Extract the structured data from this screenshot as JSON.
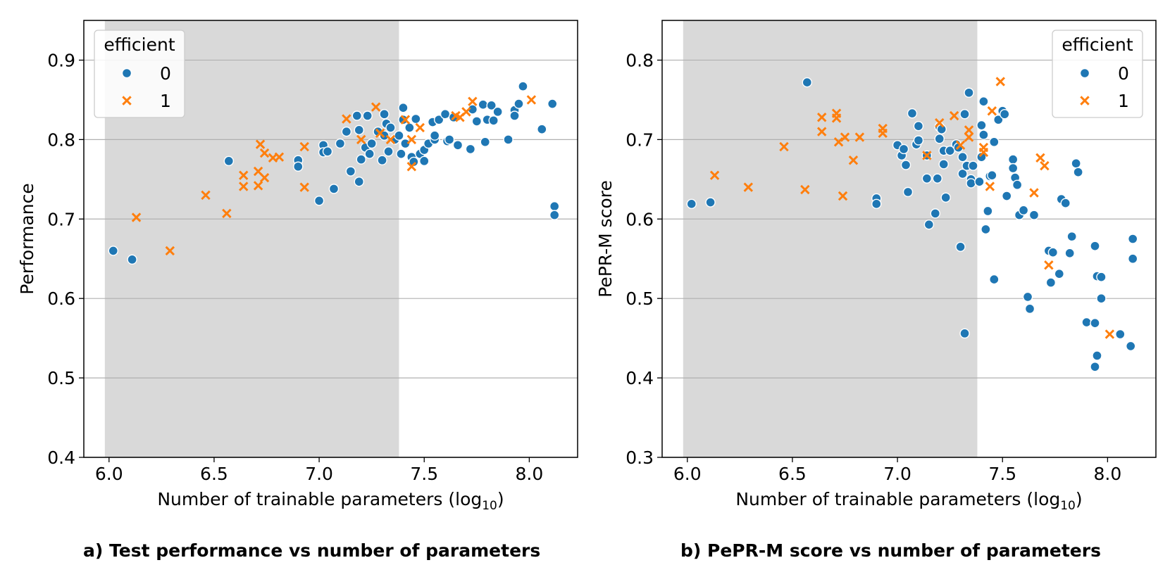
{
  "colors": {
    "class0": "#1f77b4",
    "class1": "#ff7f0e",
    "shade": "#d9d9d9",
    "grid": "#b0b0b0"
  },
  "captions": {
    "a": "a) Test performance vs number of parameters",
    "b": "b) PePR-M score vs number of parameters"
  },
  "chart_data": [
    {
      "type": "scatter",
      "title": "",
      "xlabel": "Number of trainable parameters (log10)",
      "xlabel_base": "Number of trainable parameters (log",
      "xlabel_sub": "10",
      "xlabel_close": ")",
      "ylabel": "Performance",
      "xlim": [
        5.88,
        8.23
      ],
      "ylim": [
        0.4,
        0.95
      ],
      "xticks": [
        "6.0",
        "6.5",
        "7.0",
        "7.5",
        "8.0"
      ],
      "yticks": [
        "0.4",
        "0.5",
        "0.6",
        "0.7",
        "0.8",
        "0.9"
      ],
      "grid": "horizontal",
      "shaded_x_range": [
        5.98,
        7.38
      ],
      "legend": {
        "title": "efficient",
        "labels": [
          "0",
          "1"
        ],
        "placement": "top-left"
      },
      "series": [
        {
          "name": "0",
          "marker": "circle",
          "points": [
            [
              6.02,
              0.66
            ],
            [
              6.11,
              0.649
            ],
            [
              6.57,
              0.773
            ],
            [
              6.9,
              0.774
            ],
            [
              6.9,
              0.766
            ],
            [
              7.0,
              0.723
            ],
            [
              7.02,
              0.793
            ],
            [
              7.02,
              0.784
            ],
            [
              7.04,
              0.785
            ],
            [
              7.07,
              0.738
            ],
            [
              7.1,
              0.795
            ],
            [
              7.13,
              0.81
            ],
            [
              7.15,
              0.76
            ],
            [
              7.18,
              0.83
            ],
            [
              7.19,
              0.747
            ],
            [
              7.19,
              0.812
            ],
            [
              7.2,
              0.775
            ],
            [
              7.22,
              0.79
            ],
            [
              7.23,
              0.83
            ],
            [
              7.24,
              0.782
            ],
            [
              7.25,
              0.795
            ],
            [
              7.28,
              0.81
            ],
            [
              7.3,
              0.774
            ],
            [
              7.31,
              0.832
            ],
            [
              7.31,
              0.805
            ],
            [
              7.32,
              0.82
            ],
            [
              7.33,
              0.785
            ],
            [
              7.34,
              0.815
            ],
            [
              7.36,
              0.8
            ],
            [
              7.38,
              0.805
            ],
            [
              7.39,
              0.782
            ],
            [
              7.4,
              0.84
            ],
            [
              7.4,
              0.825
            ],
            [
              7.41,
              0.795
            ],
            [
              7.43,
              0.815
            ],
            [
              7.44,
              0.778
            ],
            [
              7.45,
              0.772
            ],
            [
              7.46,
              0.826
            ],
            [
              7.48,
              0.782
            ],
            [
              7.5,
              0.773
            ],
            [
              7.5,
              0.787
            ],
            [
              7.52,
              0.795
            ],
            [
              7.54,
              0.822
            ],
            [
              7.55,
              0.8
            ],
            [
              7.55,
              0.805
            ],
            [
              7.57,
              0.825
            ],
            [
              7.6,
              0.832
            ],
            [
              7.61,
              0.798
            ],
            [
              7.62,
              0.8
            ],
            [
              7.64,
              0.828
            ],
            [
              7.66,
              0.793
            ],
            [
              7.72,
              0.788
            ],
            [
              7.73,
              0.838
            ],
            [
              7.75,
              0.823
            ],
            [
              7.78,
              0.844
            ],
            [
              7.79,
              0.797
            ],
            [
              7.8,
              0.825
            ],
            [
              7.82,
              0.843
            ],
            [
              7.83,
              0.824
            ],
            [
              7.85,
              0.835
            ],
            [
              7.9,
              0.8
            ],
            [
              7.93,
              0.837
            ],
            [
              7.93,
              0.83
            ],
            [
              7.95,
              0.845
            ],
            [
              7.97,
              0.867
            ],
            [
              8.06,
              0.813
            ],
            [
              8.11,
              0.845
            ],
            [
              8.12,
              0.716
            ],
            [
              8.12,
              0.705
            ]
          ]
        },
        {
          "name": "1",
          "marker": "x",
          "points": [
            [
              6.13,
              0.702
            ],
            [
              6.29,
              0.66
            ],
            [
              6.46,
              0.73
            ],
            [
              6.56,
              0.707
            ],
            [
              6.64,
              0.755
            ],
            [
              6.64,
              0.741
            ],
            [
              6.71,
              0.742
            ],
            [
              6.71,
              0.76
            ],
            [
              6.72,
              0.794
            ],
            [
              6.74,
              0.752
            ],
            [
              6.74,
              0.783
            ],
            [
              6.78,
              0.777
            ],
            [
              6.81,
              0.778
            ],
            [
              6.93,
              0.791
            ],
            [
              6.93,
              0.74
            ],
            [
              7.13,
              0.826
            ],
            [
              7.2,
              0.8
            ],
            [
              7.27,
              0.841
            ],
            [
              7.29,
              0.808
            ],
            [
              7.34,
              0.8
            ],
            [
              7.41,
              0.825
            ],
            [
              7.44,
              0.8
            ],
            [
              7.44,
              0.766
            ],
            [
              7.48,
              0.815
            ],
            [
              7.65,
              0.83
            ],
            [
              7.67,
              0.828
            ],
            [
              7.7,
              0.835
            ],
            [
              7.73,
              0.848
            ],
            [
              8.01,
              0.85
            ]
          ]
        }
      ]
    },
    {
      "type": "scatter",
      "title": "",
      "xlabel": "Number of trainable parameters (log10)",
      "xlabel_base": "Number of trainable parameters (log",
      "xlabel_sub": "10",
      "xlabel_close": ")",
      "ylabel": "PePR-M score",
      "xlim": [
        5.88,
        8.23
      ],
      "ylim": [
        0.3,
        0.85
      ],
      "xticks": [
        "6.0",
        "6.5",
        "7.0",
        "7.5",
        "8.0"
      ],
      "yticks": [
        "0.3",
        "0.4",
        "0.5",
        "0.6",
        "0.7",
        "0.8"
      ],
      "grid": "horizontal",
      "shaded_x_range": [
        5.98,
        7.38
      ],
      "legend": {
        "title": "efficient",
        "labels": [
          "0",
          "1"
        ],
        "placement": "top-right"
      },
      "series": [
        {
          "name": "0",
          "marker": "circle",
          "points": [
            [
              6.02,
              0.619
            ],
            [
              6.11,
              0.621
            ],
            [
              6.57,
              0.772
            ],
            [
              6.9,
              0.626
            ],
            [
              6.9,
              0.619
            ],
            [
              7.0,
              0.693
            ],
            [
              7.02,
              0.68
            ],
            [
              7.03,
              0.688
            ],
            [
              7.04,
              0.668
            ],
            [
              7.05,
              0.634
            ],
            [
              7.07,
              0.733
            ],
            [
              7.09,
              0.694
            ],
            [
              7.1,
              0.717
            ],
            [
              7.1,
              0.699
            ],
            [
              7.14,
              0.651
            ],
            [
              7.14,
              0.68
            ],
            [
              7.15,
              0.593
            ],
            [
              7.18,
              0.607
            ],
            [
              7.19,
              0.651
            ],
            [
              7.2,
              0.701
            ],
            [
              7.2,
              0.716
            ],
            [
              7.21,
              0.713
            ],
            [
              7.22,
              0.669
            ],
            [
              7.22,
              0.686
            ],
            [
              7.23,
              0.627
            ],
            [
              7.25,
              0.686
            ],
            [
              7.28,
              0.694
            ],
            [
              7.29,
              0.69
            ],
            [
              7.3,
              0.565
            ],
            [
              7.31,
              0.678
            ],
            [
              7.31,
              0.657
            ],
            [
              7.32,
              0.732
            ],
            [
              7.32,
              0.456
            ],
            [
              7.33,
              0.667
            ],
            [
              7.34,
              0.759
            ],
            [
              7.35,
              0.65
            ],
            [
              7.35,
              0.645
            ],
            [
              7.36,
              0.667
            ],
            [
              7.39,
              0.647
            ],
            [
              7.4,
              0.678
            ],
            [
              7.4,
              0.718
            ],
            [
              7.41,
              0.748
            ],
            [
              7.41,
              0.706
            ],
            [
              7.42,
              0.587
            ],
            [
              7.43,
              0.61
            ],
            [
              7.44,
              0.654
            ],
            [
              7.45,
              0.655
            ],
            [
              7.46,
              0.524
            ],
            [
              7.46,
              0.697
            ],
            [
              7.48,
              0.725
            ],
            [
              7.5,
              0.736
            ],
            [
              7.51,
              0.732
            ],
            [
              7.52,
              0.629
            ],
            [
              7.55,
              0.675
            ],
            [
              7.55,
              0.664
            ],
            [
              7.56,
              0.652
            ],
            [
              7.57,
              0.643
            ],
            [
              7.58,
              0.605
            ],
            [
              7.6,
              0.611
            ],
            [
              7.62,
              0.502
            ],
            [
              7.63,
              0.487
            ],
            [
              7.65,
              0.605
            ],
            [
              7.72,
              0.56
            ],
            [
              7.73,
              0.52
            ],
            [
              7.74,
              0.558
            ],
            [
              7.77,
              0.531
            ],
            [
              7.78,
              0.625
            ],
            [
              7.8,
              0.62
            ],
            [
              7.82,
              0.557
            ],
            [
              7.83,
              0.578
            ],
            [
              7.85,
              0.67
            ],
            [
              7.86,
              0.659
            ],
            [
              7.9,
              0.47
            ],
            [
              7.94,
              0.566
            ],
            [
              7.94,
              0.469
            ],
            [
              7.94,
              0.414
            ],
            [
              7.95,
              0.428
            ],
            [
              7.95,
              0.528
            ],
            [
              7.97,
              0.5
            ],
            [
              7.97,
              0.527
            ],
            [
              8.06,
              0.455
            ],
            [
              8.11,
              0.44
            ],
            [
              8.12,
              0.575
            ],
            [
              8.12,
              0.55
            ]
          ]
        },
        {
          "name": "1",
          "marker": "x",
          "points": [
            [
              6.13,
              0.655
            ],
            [
              6.29,
              0.64
            ],
            [
              6.46,
              0.691
            ],
            [
              6.56,
              0.637
            ],
            [
              6.64,
              0.728
            ],
            [
              6.64,
              0.71
            ],
            [
              6.71,
              0.727
            ],
            [
              6.71,
              0.733
            ],
            [
              6.72,
              0.697
            ],
            [
              6.74,
              0.629
            ],
            [
              6.75,
              0.703
            ],
            [
              6.79,
              0.674
            ],
            [
              6.82,
              0.703
            ],
            [
              6.93,
              0.714
            ],
            [
              6.93,
              0.708
            ],
            [
              7.14,
              0.68
            ],
            [
              7.2,
              0.721
            ],
            [
              7.27,
              0.73
            ],
            [
              7.3,
              0.693
            ],
            [
              7.34,
              0.703
            ],
            [
              7.34,
              0.712
            ],
            [
              7.41,
              0.69
            ],
            [
              7.41,
              0.684
            ],
            [
              7.44,
              0.641
            ],
            [
              7.45,
              0.736
            ],
            [
              7.49,
              0.773
            ],
            [
              7.65,
              0.633
            ],
            [
              7.68,
              0.677
            ],
            [
              7.7,
              0.667
            ],
            [
              7.72,
              0.542
            ],
            [
              8.01,
              0.455
            ]
          ]
        }
      ]
    }
  ]
}
